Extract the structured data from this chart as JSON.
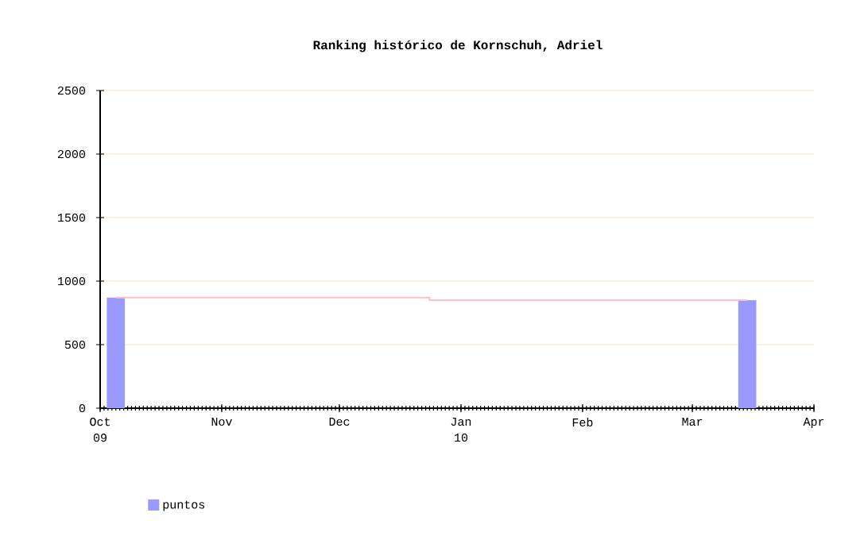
{
  "chart_data": {
    "type": "bar",
    "title": "Ranking histórico de Kornschuh, Adriel",
    "series": [
      {
        "name": "puntos",
        "color": "#9999ff",
        "x": [
          "2009-10-05",
          "2010-03-15"
        ],
        "values": [
          870,
          850
        ]
      },
      {
        "type": "step",
        "color": "#ffc0c0",
        "x": [
          "2009-10-05",
          "2009-12-24",
          "2010-03-15"
        ],
        "values": [
          870,
          850,
          850
        ]
      }
    ],
    "xlim": [
      "2009-10-01",
      "2010-04-01"
    ],
    "xticks": [
      {
        "value": "2009-10-01",
        "label": "Oct 09"
      },
      {
        "value": "2009-11-01",
        "label": "Nov"
      },
      {
        "value": "2009-12-01",
        "label": "Dec"
      },
      {
        "value": "2010-01-01",
        "label": "Jan 10"
      },
      {
        "value": "2010-02-01",
        "label": "Feb"
      },
      {
        "value": "2010-03-01",
        "label": "Mar"
      },
      {
        "value": "2010-04-01",
        "label": "Apr"
      }
    ],
    "ylim": [
      0,
      2500
    ],
    "yticks": [
      0,
      500,
      1000,
      1500,
      2000,
      2500
    ],
    "grid": "y",
    "legend": "bottom left"
  }
}
